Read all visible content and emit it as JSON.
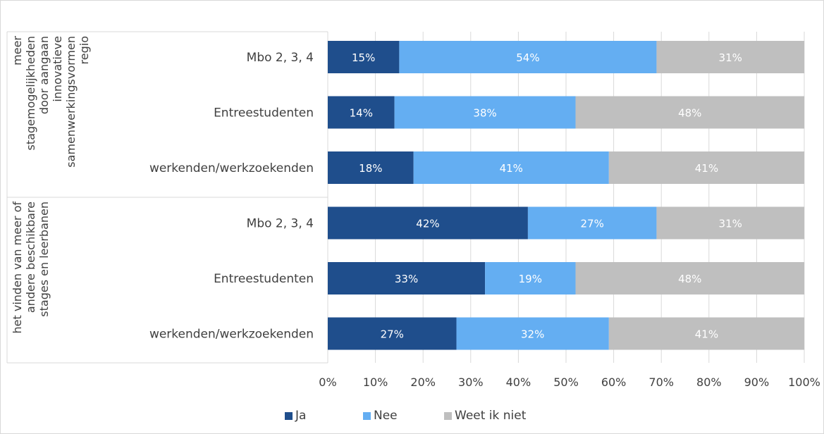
{
  "chart_data": {
    "type": "bar",
    "orientation": "horizontal",
    "stacked": "100%",
    "groups": [
      {
        "label_lines": [
          "meer",
          "stagemogelijkheden",
          "door aangaan",
          "innovatieve",
          "samenwerkingsvormen",
          "regio"
        ],
        "categories": [
          "Mbo 2, 3, 4",
          "Entreestudenten",
          "werkenden/werkzoekenden"
        ]
      },
      {
        "label_lines": [
          "het vinden van meer of",
          "andere beschikbare",
          "stages en leerbanen"
        ],
        "categories": [
          "Mbo 2, 3, 4",
          "Entreestudenten",
          "werkenden/werkzoekenden"
        ]
      }
    ],
    "series": [
      {
        "name": "Ja",
        "color": "#1f4e8c",
        "label_color": "#ffffff",
        "values": [
          15,
          14,
          18,
          42,
          33,
          27
        ],
        "labels": [
          "15%",
          "14%",
          "18%",
          "42%",
          "33%",
          "27%"
        ]
      },
      {
        "name": "Nee",
        "color": "#64aef2",
        "label_color": "#ffffff",
        "values": [
          54,
          38,
          41,
          27,
          19,
          32
        ],
        "labels": [
          "54%",
          "38%",
          "41%",
          "27%",
          "19%",
          "32%"
        ]
      },
      {
        "name": "Weet ik niet",
        "color": "#bfbfbf",
        "label_color": "#ffffff",
        "values": [
          31,
          48,
          41,
          31,
          48,
          41
        ],
        "labels": [
          "31%",
          "48%",
          "41%",
          "31%",
          "48%",
          "41%"
        ]
      }
    ],
    "xlim": [
      0,
      100
    ],
    "xticks": [
      "0%",
      "10%",
      "20%",
      "30%",
      "40%",
      "50%",
      "60%",
      "70%",
      "80%",
      "90%",
      "100%"
    ],
    "grid": true,
    "legend_position": "bottom"
  }
}
